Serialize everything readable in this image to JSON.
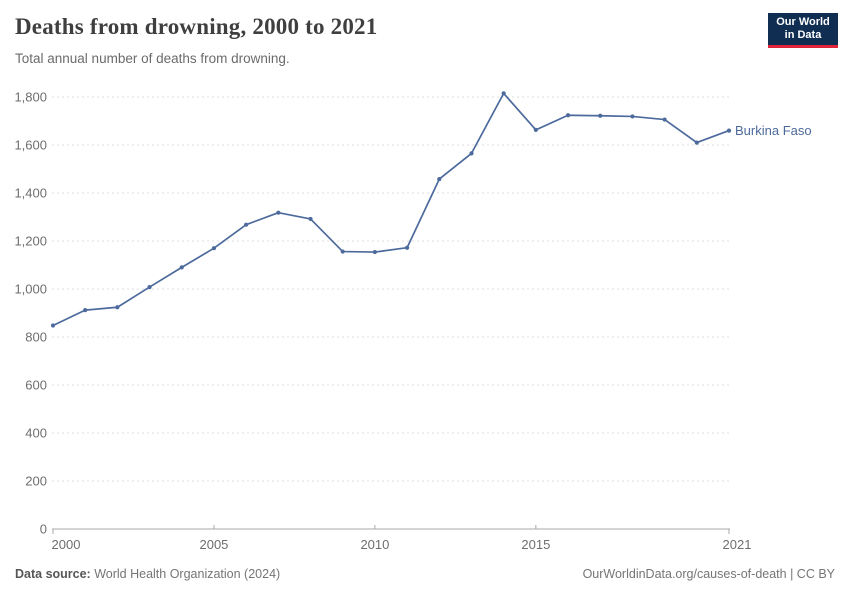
{
  "header": {
    "title": "Deaths from drowning, 2000 to 2021",
    "subtitle": "Total annual number of deaths from drowning.",
    "logo": {
      "line1": "Our World",
      "line2": "in Data",
      "bg_color": "#0f2e52",
      "accent_color": "#e0243a"
    }
  },
  "footer": {
    "source_label": "Data source:",
    "source_value": " World Health Organization (2024)",
    "credit": "OurWorldinData.org/causes-of-death | CC BY"
  },
  "chart_data": {
    "type": "line",
    "title": "Deaths from drowning, 2000 to 2021",
    "subtitle": "Total annual number of deaths from drowning.",
    "xlabel": "",
    "ylabel": "",
    "xlim": [
      2000,
      2021
    ],
    "ylim": [
      0,
      1800
    ],
    "xticks": [
      2000,
      2005,
      2010,
      2015,
      2021
    ],
    "xtick_labels": [
      "2000",
      "2005",
      "2010",
      "2015",
      "2021"
    ],
    "yticks": [
      0,
      200,
      400,
      600,
      800,
      1000,
      1200,
      1400,
      1600,
      1800
    ],
    "ytick_labels": [
      "0",
      "200",
      "400",
      "600",
      "800",
      "1,000",
      "1,200",
      "1,400",
      "1,600",
      "1,800"
    ],
    "grid": "horizontal dashed",
    "legend": "end-of-line label",
    "x": [
      2000,
      2001,
      2002,
      2003,
      2004,
      2005,
      2006,
      2007,
      2008,
      2009,
      2010,
      2011,
      2012,
      2013,
      2014,
      2015,
      2016,
      2017,
      2018,
      2019,
      2020,
      2021
    ],
    "series": [
      {
        "name": "Burkina Faso",
        "color": "#4c6a9c",
        "values": [
          848,
          912,
          924,
          1008,
          1090,
          1170,
          1268,
          1318,
          1292,
          1156,
          1154,
          1172,
          1458,
          1565,
          1815,
          1663,
          1724,
          1722,
          1719,
          1706,
          1610,
          1660
        ]
      }
    ]
  }
}
